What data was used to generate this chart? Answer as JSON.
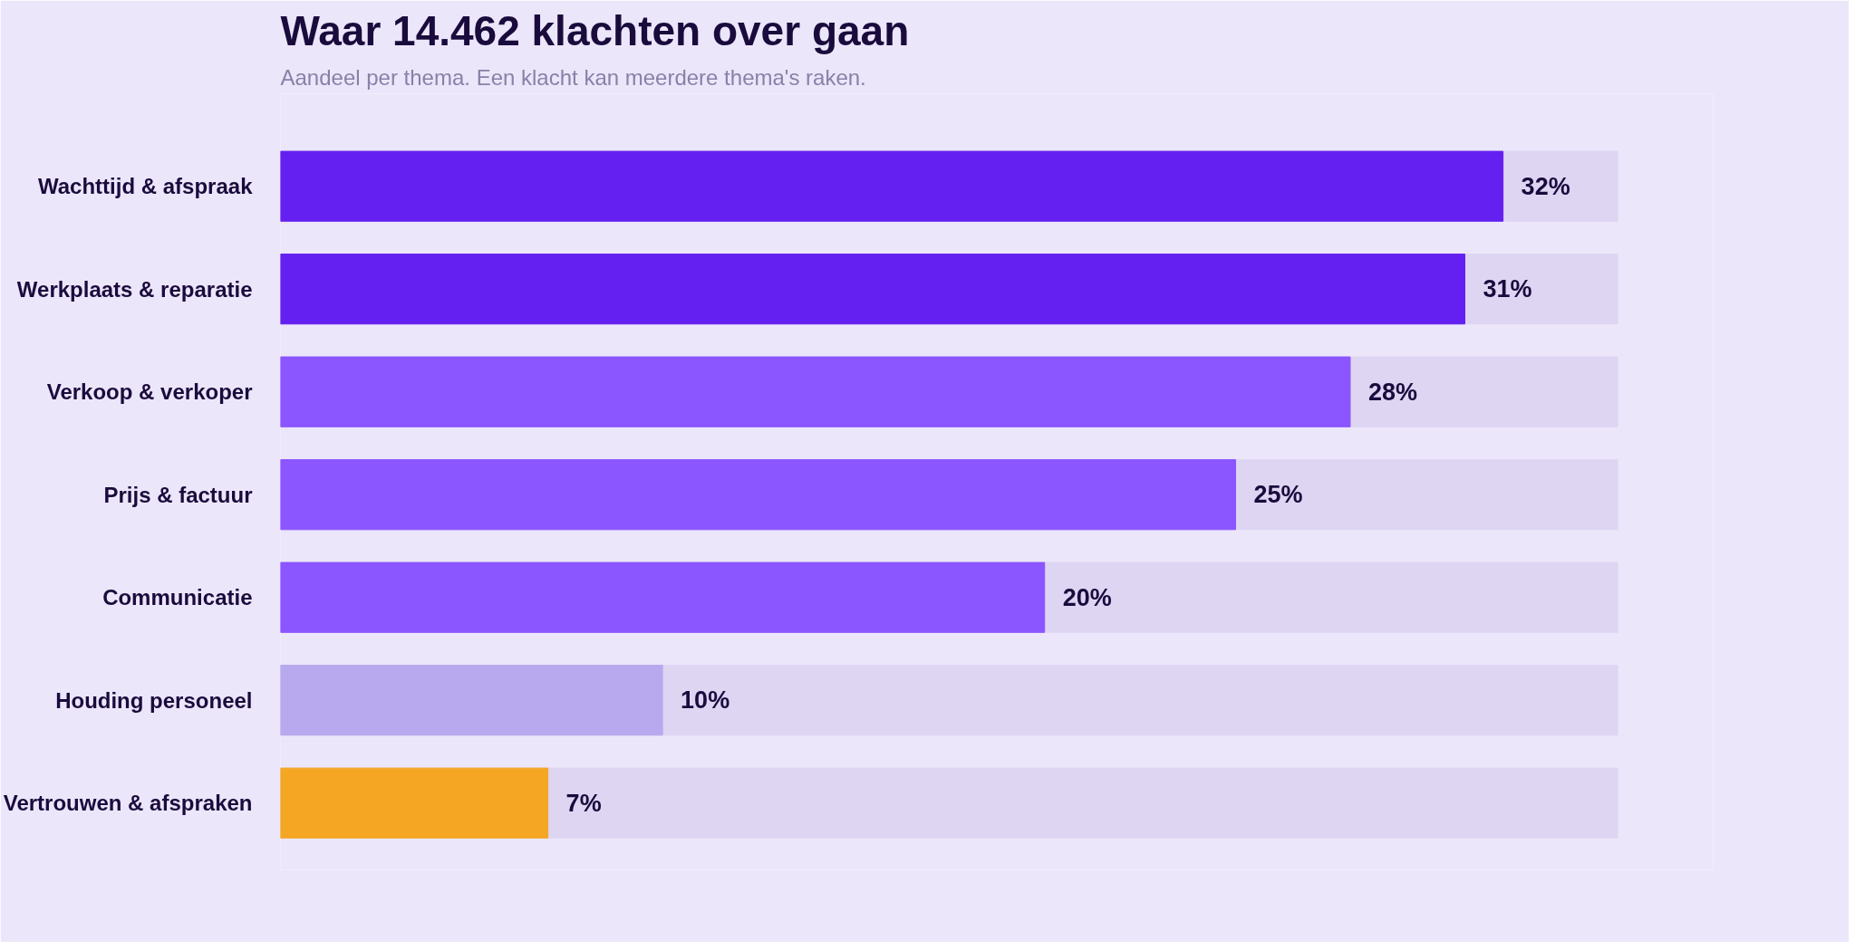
{
  "chart_data": {
    "type": "bar",
    "orientation": "horizontal",
    "title": "Waar 14.462 klachten over gaan",
    "subtitle": "Aandeel per thema. Een klacht kan meerdere thema's raken.",
    "categories": [
      "Wachttijd & afspraak",
      "Werkplaats & reparatie",
      "Verkoop & verkoper",
      "Prijs & factuur",
      "Communicatie",
      "Houding personeel",
      "Vertrouwen & afspraken"
    ],
    "values": [
      32,
      31,
      28,
      25,
      20,
      10,
      7
    ],
    "colors": [
      "#6420f0",
      "#6420f0",
      "#8b55ff",
      "#8b55ff",
      "#8b55ff",
      "#b8a8ee",
      "#f5a623"
    ],
    "value_labels": [
      "32%",
      "31%",
      "28%",
      "25%",
      "20%",
      "10%",
      "7%"
    ],
    "xlim": [
      0,
      35
    ],
    "tick_labels": "y",
    "grid": false
  }
}
